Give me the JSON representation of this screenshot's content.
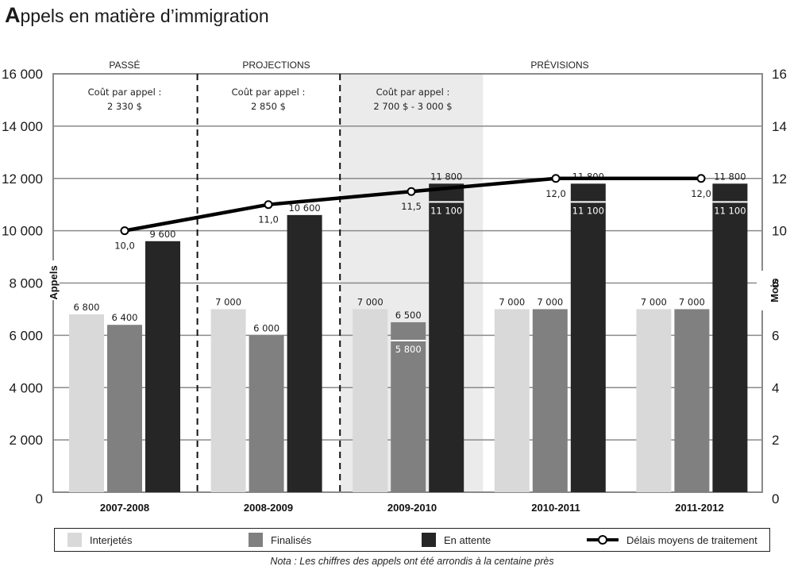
{
  "title_first_letter": "A",
  "title_rest": "ppels en matière d’immigration",
  "chart_data": {
    "type": "bar",
    "title": "Appels en matière d’immigration",
    "categories": [
      "2007-2008",
      "2008-2009",
      "2009-2010",
      "2010-2011",
      "2011-2012"
    ],
    "category_colors": [
      "#8a8a8a",
      "#111111",
      "#111111",
      "#111111",
      "#111111"
    ],
    "ylabel": "Appels",
    "y2label": "Mois",
    "ylim": [
      0,
      16000
    ],
    "y2lim": [
      0,
      16
    ],
    "yticks": [
      0,
      2000,
      4000,
      6000,
      8000,
      10000,
      12000,
      14000,
      16000
    ],
    "ytick_labels": [
      "0",
      "2 000",
      "4 000",
      "6 000",
      "8 000",
      "10 000",
      "12 000",
      "14 000",
      "16 000"
    ],
    "y2ticks": [
      0,
      2,
      4,
      6,
      8,
      10,
      12,
      14,
      16
    ],
    "y2tick_labels": [
      "0",
      "2",
      "4",
      "6",
      "8",
      "10",
      "12",
      "14",
      "16"
    ],
    "grid": true,
    "series": [
      {
        "name": "Interjetés",
        "color": "#d9d9d9",
        "values": [
          6800,
          7000,
          7000,
          7000,
          7000
        ],
        "labels": [
          "6 800",
          "7 000",
          "7 000",
          "7 000",
          "7 000"
        ]
      },
      {
        "name": "Finalisés",
        "color": "#808080",
        "values": [
          6400,
          6000,
          6500,
          7000,
          7000
        ],
        "labels": [
          "6 400",
          "6 000",
          "6 500",
          "7 000",
          "7 000"
        ],
        "range_low": [
          null,
          null,
          5800,
          null,
          null
        ],
        "range_low_labels": [
          null,
          null,
          "5 800",
          null,
          null
        ]
      },
      {
        "name": "En attente",
        "color": "#262626",
        "values": [
          9600,
          10600,
          11800,
          11800,
          11800
        ],
        "labels": [
          "9 600",
          "10 600",
          "11 800",
          "11 800",
          "11 800"
        ],
        "range_low": [
          null,
          null,
          11100,
          11100,
          11100
        ],
        "range_low_labels": [
          null,
          null,
          "11 100",
          "11 100",
          "11 100"
        ]
      },
      {
        "name": "Délais moyens de traitement",
        "type": "line",
        "axis": "y2",
        "color": "#000000",
        "values": [
          10.0,
          11.0,
          11.5,
          12.0,
          12.0
        ],
        "labels": [
          "10,0",
          "11,0",
          "11,5",
          "12,0",
          "12,0"
        ]
      }
    ],
    "periods": [
      {
        "label": "PASSÉ",
        "from": 0,
        "to": 0
      },
      {
        "label": "PROJECTIONS",
        "from": 1,
        "to": 1
      },
      {
        "label": "PRÉVISIONS",
        "from": 2,
        "to": 4
      }
    ],
    "cost_annotations": [
      {
        "line1": "Coût par appel :",
        "line2": "2 330 $"
      },
      {
        "line1": "Coût par appel :",
        "line2": "2 850 $"
      },
      {
        "line1": "Coût par appel :",
        "line2": "2 700 $ - 3 000 $"
      }
    ],
    "shaded_category": 2,
    "legend_position": "bottom",
    "note": "Nota : Les chiffres des appels ont été arrondis à la centaine près"
  }
}
